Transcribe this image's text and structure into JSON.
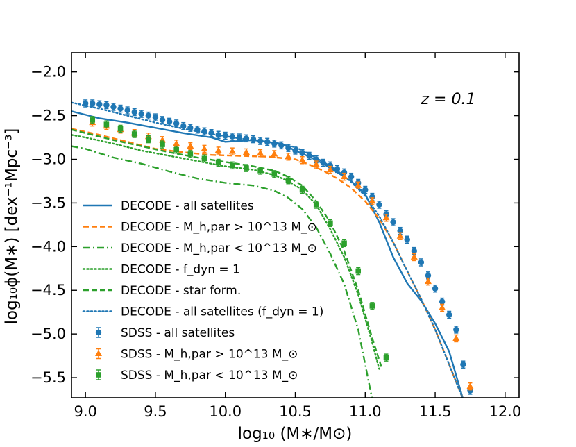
{
  "chart_data": {
    "type": "line",
    "title": "",
    "annotation": "z = 0.1",
    "xlabel": "log₁₀ (M∗/M⊙)",
    "ylabel": "log₁₀ϕ(M∗) [dex⁻¹Mpc⁻³]",
    "xlim": [
      8.9,
      12.1
    ],
    "ylim": [
      -5.73,
      -1.78
    ],
    "xticks": [
      "9.0",
      "9.5",
      "10.0",
      "10.5",
      "11.0",
      "11.5",
      "12.0"
    ],
    "yticks": [
      "−2.0",
      "−2.5",
      "−3.0",
      "−3.5",
      "−4.0",
      "−4.5",
      "−5.0",
      "−5.5"
    ],
    "ytick_values": [
      -2.0,
      -2.5,
      -3.0,
      -3.5,
      -4.0,
      -4.5,
      -5.0,
      -5.5
    ],
    "xtick_values": [
      9.0,
      9.5,
      10.0,
      10.5,
      11.0,
      11.5,
      12.0
    ],
    "grid": false,
    "legend_position": "lower-left",
    "colors": {
      "blue": "#1f77b4",
      "orange": "#ff7f0e",
      "green": "#2ca02c"
    },
    "series": [
      {
        "name": "DECODE - all satellites",
        "legend": "DECODE - all satellites",
        "color": "#1f77b4",
        "style": "solid",
        "x": [
          8.9,
          9.1,
          9.3,
          9.5,
          9.7,
          9.9,
          10.0,
          10.2,
          10.4,
          10.5,
          10.6,
          10.7,
          10.8,
          10.9,
          11.0,
          11.1,
          11.2,
          11.3,
          11.4,
          11.5,
          11.6,
          11.7
        ],
        "y": [
          -2.45,
          -2.53,
          -2.58,
          -2.64,
          -2.7,
          -2.75,
          -2.8,
          -2.78,
          -2.82,
          -2.9,
          -2.97,
          -3.05,
          -3.15,
          -3.25,
          -3.4,
          -3.72,
          -4.12,
          -4.42,
          -4.62,
          -4.88,
          -5.2,
          -5.75
        ]
      },
      {
        "name": "DECODE - M_h,par > 10^13 M_sun",
        "legend": "DECODE - M_h,par > 10^13 M_⊙",
        "color": "#ff7f0e",
        "style": "dashed",
        "x": [
          8.9,
          9.1,
          9.3,
          9.5,
          9.7,
          9.9,
          10.1,
          10.3,
          10.5,
          10.6,
          10.7,
          10.8,
          10.9,
          11.0,
          11.1,
          11.2,
          11.3,
          11.4,
          11.5,
          11.6,
          11.7
        ],
        "y": [
          -2.65,
          -2.72,
          -2.8,
          -2.88,
          -2.92,
          -2.95,
          -2.96,
          -2.97,
          -3.0,
          -3.06,
          -3.13,
          -3.22,
          -3.33,
          -3.48,
          -3.68,
          -3.95,
          -4.28,
          -4.6,
          -4.95,
          -5.35,
          -5.75
        ]
      },
      {
        "name": "DECODE - M_h,par < 10^13 M_sun",
        "legend": "DECODE - M_h,par < 10^13 M_⊙",
        "color": "#2ca02c",
        "style": "dashdot",
        "x": [
          8.9,
          9.0,
          9.2,
          9.4,
          9.6,
          9.8,
          10.0,
          10.2,
          10.35,
          10.45,
          10.55,
          10.65,
          10.75,
          10.85,
          10.95,
          11.0,
          11.05
        ],
        "y": [
          -2.85,
          -2.88,
          -2.98,
          -3.05,
          -3.14,
          -3.22,
          -3.27,
          -3.3,
          -3.36,
          -3.44,
          -3.57,
          -3.78,
          -4.08,
          -4.43,
          -4.95,
          -5.35,
          -5.75
        ]
      },
      {
        "name": "DECODE - f_dyn = 1",
        "legend": "DECODE - f_dyn = 1",
        "color": "#2ca02c",
        "style": "dotted",
        "x": [
          8.9,
          9.0,
          9.2,
          9.4,
          9.6,
          9.8,
          10.0,
          10.2,
          10.35,
          10.45,
          10.55,
          10.65,
          10.75,
          10.85,
          10.95,
          11.05,
          11.1
        ],
        "y": [
          -2.72,
          -2.75,
          -2.82,
          -2.9,
          -2.96,
          -3.02,
          -3.08,
          -3.12,
          -3.18,
          -3.25,
          -3.35,
          -3.52,
          -3.8,
          -4.12,
          -4.55,
          -5.1,
          -5.4
        ]
      },
      {
        "name": "DECODE - star form.",
        "legend": "DECODE - star form.",
        "color": "#2ca02c",
        "style": "dashed",
        "x": [
          8.9,
          9.0,
          9.2,
          9.4,
          9.6,
          9.8,
          10.0,
          10.2,
          10.35,
          10.45,
          10.55,
          10.65,
          10.75,
          10.85,
          10.95,
          11.05,
          11.12
        ],
        "y": [
          -2.66,
          -2.7,
          -2.78,
          -2.85,
          -2.92,
          -2.98,
          -3.03,
          -3.08,
          -3.13,
          -3.2,
          -3.3,
          -3.48,
          -3.72,
          -4.05,
          -4.5,
          -5.05,
          -5.4
        ]
      },
      {
        "name": "DECODE - all satellites (f_dyn = 1)",
        "legend": "DECODE - all satellites (f_dyn = 1)",
        "color": "#1f77b4",
        "style": "dotted",
        "x": [
          8.9,
          9.1,
          9.3,
          9.5,
          9.7,
          9.9,
          10.1,
          10.3,
          10.5,
          10.6,
          10.7,
          10.8,
          10.9,
          11.0,
          11.1,
          11.2,
          11.3,
          11.4,
          11.5,
          11.6,
          11.7
        ],
        "y": [
          -2.35,
          -2.42,
          -2.5,
          -2.58,
          -2.65,
          -2.71,
          -2.76,
          -2.8,
          -2.86,
          -2.94,
          -3.03,
          -3.13,
          -3.26,
          -3.42,
          -3.65,
          -3.95,
          -4.28,
          -4.6,
          -4.95,
          -5.35,
          -5.75
        ]
      },
      {
        "name": "SDSS - all satellites",
        "legend": "SDSS - all satellites",
        "color": "#1f77b4",
        "marker": "circle",
        "x": [
          9.0,
          9.05,
          9.1,
          9.15,
          9.2,
          9.25,
          9.3,
          9.35,
          9.4,
          9.45,
          9.5,
          9.55,
          9.6,
          9.65,
          9.7,
          9.75,
          9.8,
          9.85,
          9.9,
          9.95,
          10.0,
          10.05,
          10.1,
          10.15,
          10.2,
          10.25,
          10.3,
          10.35,
          10.4,
          10.45,
          10.5,
          10.55,
          10.6,
          10.65,
          10.7,
          10.75,
          10.8,
          10.85,
          10.9,
          10.95,
          11.0,
          11.05,
          11.1,
          11.15,
          11.2,
          11.25,
          11.3,
          11.35,
          11.4,
          11.45,
          11.5,
          11.55,
          11.6,
          11.65,
          11.7,
          11.75
        ],
        "y": [
          -2.36,
          -2.36,
          -2.37,
          -2.38,
          -2.4,
          -2.42,
          -2.44,
          -2.46,
          -2.48,
          -2.5,
          -2.52,
          -2.55,
          -2.57,
          -2.59,
          -2.62,
          -2.64,
          -2.66,
          -2.68,
          -2.7,
          -2.72,
          -2.73,
          -2.74,
          -2.75,
          -2.76,
          -2.77,
          -2.79,
          -2.8,
          -2.82,
          -2.84,
          -2.87,
          -2.9,
          -2.93,
          -2.96,
          -3.0,
          -3.04,
          -3.07,
          -3.11,
          -3.15,
          -3.2,
          -3.27,
          -3.35,
          -3.43,
          -3.52,
          -3.63,
          -3.72,
          -3.82,
          -3.92,
          -4.05,
          -4.18,
          -4.33,
          -4.48,
          -4.63,
          -4.78,
          -4.95,
          -5.35,
          -5.65
        ]
      },
      {
        "name": "SDSS - M_h,par > 10^13 M_sun",
        "legend": "SDSS - M_h,par > 10^13 M_⊙",
        "color": "#ff7f0e",
        "marker": "triangle",
        "x": [
          9.05,
          9.15,
          9.25,
          9.35,
          9.45,
          9.55,
          9.65,
          9.75,
          9.85,
          9.95,
          10.05,
          10.15,
          10.25,
          10.35,
          10.45,
          10.55,
          10.65,
          10.75,
          10.85,
          10.95,
          11.05,
          11.15,
          11.25,
          11.35,
          11.45,
          11.55,
          11.65,
          11.75
        ],
        "y": [
          -2.58,
          -2.62,
          -2.66,
          -2.7,
          -2.74,
          -2.78,
          -2.82,
          -2.85,
          -2.88,
          -2.9,
          -2.91,
          -2.92,
          -2.93,
          -2.94,
          -2.97,
          -3.01,
          -3.06,
          -3.12,
          -3.2,
          -3.3,
          -3.48,
          -3.67,
          -3.88,
          -4.12,
          -4.4,
          -4.7,
          -5.05,
          -5.6
        ]
      },
      {
        "name": "SDSS - M_h,par < 10^13 M_sun",
        "legend": "SDSS - M_h,par < 10^13 M_⊙",
        "color": "#2ca02c",
        "marker": "square",
        "x": [
          9.05,
          9.15,
          9.25,
          9.35,
          9.45,
          9.55,
          9.65,
          9.75,
          9.85,
          9.95,
          10.05,
          10.15,
          10.25,
          10.35,
          10.45,
          10.55,
          10.65,
          10.75,
          10.85,
          10.95,
          11.05,
          11.15
        ],
        "y": [
          -2.55,
          -2.6,
          -2.65,
          -2.71,
          -2.77,
          -2.83,
          -2.89,
          -2.94,
          -2.99,
          -3.04,
          -3.07,
          -3.1,
          -3.13,
          -3.17,
          -3.24,
          -3.35,
          -3.52,
          -3.73,
          -3.96,
          -4.28,
          -4.68,
          -5.27
        ]
      }
    ]
  }
}
